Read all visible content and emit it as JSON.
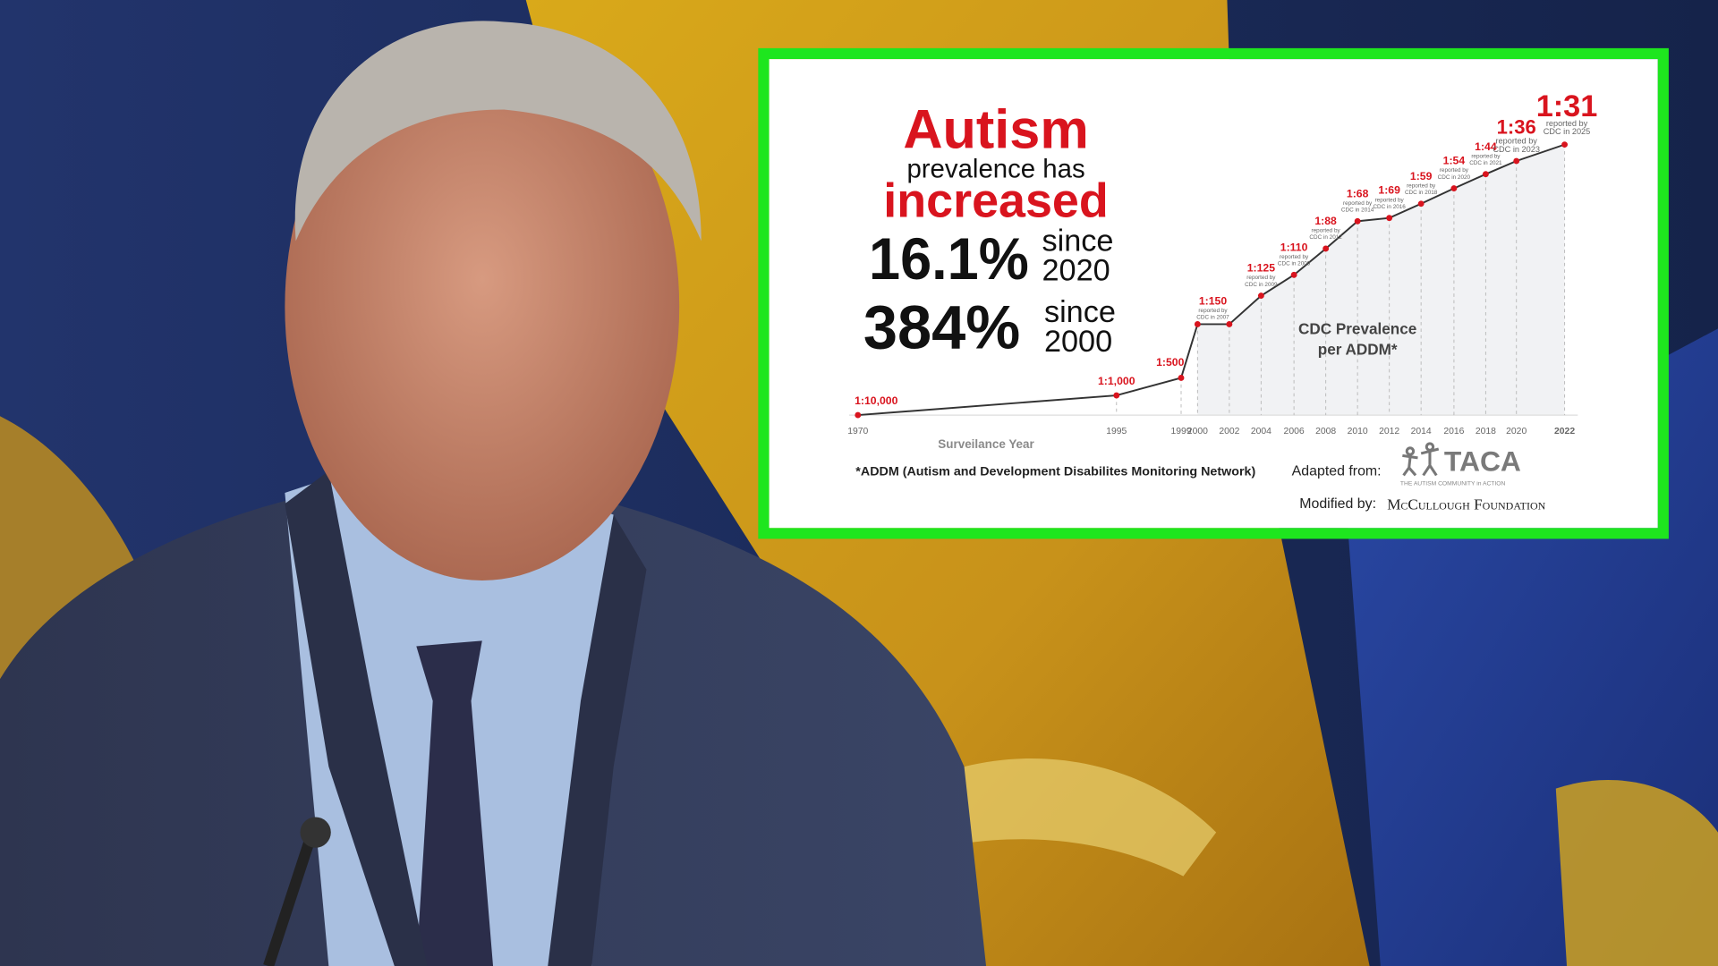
{
  "overlay": {
    "headline": {
      "word1": "Autism",
      "line2": "prevalence has",
      "word3": "increased",
      "stat1_value": "16.1%",
      "stat1_since": "since",
      "stat1_year": "2020",
      "stat2_value": "384%",
      "stat2_since": "since",
      "stat2_year": "2000"
    },
    "chart_label_line1": "CDC Prevalence",
    "chart_label_line2": "per ADDM*",
    "footnote": "*ADDM (Autism and Development Disabilites Monitoring Network)",
    "adapted_from": "Adapted from:",
    "taca_logo": "TACA",
    "taca_tagline": "THE AUTISM COMMUNITY in ACTION",
    "modified_by": "Modified by:",
    "modifier": "McCullough Foundation",
    "border_color": "#1ee61e"
  },
  "chart_data": {
    "type": "line",
    "xlabel": "Surveilance Year",
    "x_ticks": [
      "1970",
      "1995",
      "1999",
      "2000",
      "2002",
      "2004",
      "2006",
      "2008",
      "2010",
      "2012",
      "2014",
      "2016",
      "2018",
      "2020",
      "2022"
    ],
    "series": [
      {
        "color": "#d9141e",
        "points": [
          {
            "year": "1970",
            "label": "1:10,000",
            "reported": ""
          },
          {
            "year": "1995",
            "label": "1:1,000",
            "reported": ""
          },
          {
            "year": "1999",
            "label": "1:500",
            "reported": ""
          },
          {
            "year": "2000",
            "label": "1:150",
            "reported": "CDC in 2007"
          },
          {
            "year": "2002",
            "label": "",
            "reported": ""
          },
          {
            "year": "2004",
            "label": "1:125",
            "reported": "CDC in 2009"
          },
          {
            "year": "2006",
            "label": "1:110",
            "reported": "CDC in 2009"
          },
          {
            "year": "2008",
            "label": "1:88",
            "reported": "CDC in 2012"
          },
          {
            "year": "2010",
            "label": "1:68",
            "reported": "CDC in 2014"
          },
          {
            "year": "2012",
            "label": "1:69",
            "reported": "CDC in 2016"
          },
          {
            "year": "2014",
            "label": "1:59",
            "reported": "CDC in 2018"
          },
          {
            "year": "2016",
            "label": "1:54",
            "reported": "CDC in 2020"
          },
          {
            "year": "2018",
            "label": "1:44",
            "reported": "CDC in 2021"
          },
          {
            "year": "2020",
            "label": "1:36",
            "reported": "CDC in 2023"
          },
          {
            "year": "2022",
            "label": "1:31",
            "reported": "CDC in 2025"
          }
        ],
        "reported_prefix": "reported by"
      }
    ]
  }
}
